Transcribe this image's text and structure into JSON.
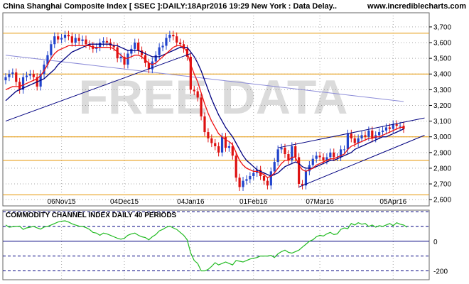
{
  "header": {
    "title": "China Shanghai Composite Index [ SSEC ]:DAILY:18Apr2016 19:29 New York : Data Delay..",
    "site": "www.incrediblecharts.com"
  },
  "watermark": "FREE DATA",
  "chart_data": [
    {
      "type": "candlestick",
      "title": "China Shanghai Composite Index [ SSEC ]:DAILY:18Apr2016 19:29 New York : Data Delay..",
      "ylim": [
        2560,
        3790
      ],
      "y_ticks": [
        "3,700",
        "3,600",
        "3,500",
        "3,400",
        "3,300",
        "3,200",
        "3,100",
        "3,000",
        "2,900",
        "2,800",
        "2,700",
        "2,600"
      ],
      "y_tick_values": [
        3700,
        3600,
        3500,
        3400,
        3300,
        3200,
        3100,
        3000,
        2900,
        2800,
        2700,
        2600
      ],
      "x_labels": [
        "06Nov15",
        "04Dec15",
        "04Jan16",
        "01Feb16",
        "07Mar16",
        "05Apr16"
      ],
      "x_label_index": [
        16,
        34,
        53,
        71,
        90,
        111
      ],
      "horizontal_levels": [
        3660,
        3400,
        3000,
        2850,
        2630
      ],
      "closes": [
        3380,
        3400,
        3410,
        3350,
        3300,
        3380,
        3390,
        3400,
        3380,
        3320,
        3400,
        3460,
        3520,
        3590,
        3640,
        3620,
        3630,
        3650,
        3640,
        3600,
        3630,
        3610,
        3620,
        3590,
        3580,
        3560,
        3570,
        3600,
        3610,
        3600,
        3580,
        3570,
        3500,
        3510,
        3460,
        3530,
        3560,
        3600,
        3550,
        3520,
        3470,
        3430,
        3480,
        3520,
        3570,
        3580,
        3630,
        3650,
        3640,
        3600,
        3590,
        3560,
        3510,
        3300,
        3290,
        3250,
        3130,
        3030,
        2990,
        2960,
        2940,
        2900,
        3000,
        2930,
        2940,
        2880,
        2740,
        2680,
        2720,
        2730,
        2750,
        2770,
        2790,
        2750,
        2720,
        2690,
        2780,
        2840,
        2920,
        2930,
        2890,
        2850,
        2940,
        2870,
        2700,
        2690,
        2780,
        2820,
        2860,
        2880,
        2870,
        2850,
        2870,
        2900,
        2870,
        2870,
        2920,
        2920,
        3020,
        2990,
        2960,
        2990,
        3010,
        3000,
        3040,
        2990,
        3010,
        3030,
        3040,
        3060,
        3050,
        3080,
        3070,
        3070,
        3050
      ],
      "ma_short": [
        3300,
        3310,
        3320,
        3320,
        3320,
        3330,
        3340,
        3350,
        3360,
        3370,
        3390,
        3420,
        3460,
        3500,
        3530,
        3550,
        3560,
        3570,
        3580,
        3580,
        3580,
        3580,
        3580,
        3580,
        3580,
        3570,
        3570,
        3570,
        3570,
        3570,
        3570,
        3560,
        3540,
        3520,
        3500,
        3500,
        3510,
        3520,
        3520,
        3510,
        3490,
        3470,
        3460,
        3470,
        3490,
        3510,
        3530,
        3550,
        3570,
        3580,
        3580,
        3570,
        3540,
        3460,
        3400,
        3350,
        3280,
        3210,
        3150,
        3100,
        3060,
        3020,
        3000,
        2980,
        2970,
        2950,
        2900,
        2850,
        2820,
        2800,
        2790,
        2780,
        2780,
        2770,
        2760,
        2740,
        2750,
        2770,
        2800,
        2830,
        2850,
        2850,
        2870,
        2870,
        2820,
        2790,
        2780,
        2790,
        2800,
        2820,
        2830,
        2840,
        2850,
        2860,
        2860,
        2870,
        2880,
        2890,
        2920,
        2940,
        2950,
        2960,
        2970,
        2980,
        2990,
        2990,
        3000,
        3000,
        3010,
        3020,
        3030,
        3040,
        3050,
        3060,
        3060
      ],
      "ma_medium": [
        3230,
        3250,
        3270,
        3290,
        3300,
        3310,
        3320,
        3330,
        3340,
        3350,
        3360,
        3370,
        3390,
        3410,
        3430,
        3460,
        3480,
        3500,
        3520,
        3540,
        3550,
        3560,
        3570,
        3580,
        3590,
        3590,
        3590,
        3590,
        3590,
        3590,
        3590,
        3580,
        3580,
        3570,
        3560,
        3550,
        3550,
        3550,
        3550,
        3540,
        3530,
        3520,
        3510,
        3510,
        3510,
        3520,
        3530,
        3540,
        3550,
        3560,
        3570,
        3570,
        3570,
        3540,
        3510,
        3470,
        3420,
        3360,
        3300,
        3240,
        3190,
        3140,
        3100,
        3060,
        3030,
        3000,
        2960,
        2920,
        2880,
        2850,
        2830,
        2810,
        2790,
        2780,
        2770,
        2760,
        2750,
        2760,
        2770,
        2790,
        2810,
        2820,
        2830,
        2840,
        2830,
        2810,
        2800,
        2800,
        2800,
        2810,
        2820,
        2830,
        2840,
        2850,
        2850,
        2860,
        2870,
        2880,
        2890,
        2900,
        2920,
        2930,
        2940,
        2950,
        2960,
        2970,
        2980,
        2990,
        3000,
        3000,
        3010,
        3020,
        3030,
        3040,
        3050
      ],
      "ma_long_start": 3520,
      "ma_long_end": 3225,
      "trendlines": [
        {
          "from": {
            "index": 0,
            "value": 3100
          },
          "to": {
            "index": 53,
            "value": 3530
          }
        },
        {
          "from": {
            "index": 84,
            "value": 2680
          },
          "to": {
            "index": 120,
            "value": 3010
          }
        },
        {
          "from": {
            "index": 78,
            "value": 2930
          },
          "to": {
            "index": 120,
            "value": 3120
          }
        }
      ]
    },
    {
      "type": "line",
      "title": "COMMODITY CHANNEL INDEX DAILY 40 PERIODS",
      "ylim": [
        -260,
        210
      ],
      "y_ticks": [
        "0",
        "-200"
      ],
      "y_tick_values": [
        0,
        -200
      ],
      "levels": [
        200,
        100,
        0,
        -100,
        -200
      ],
      "values": [
        110,
        95,
        98,
        100,
        102,
        80,
        90,
        95,
        100,
        90,
        82,
        96,
        100,
        110,
        120,
        130,
        135,
        138,
        130,
        118,
        110,
        102,
        100,
        92,
        80,
        60,
        55,
        40,
        55,
        50,
        40,
        30,
        20,
        14,
        20,
        40,
        50,
        55,
        40,
        30,
        25,
        10,
        30,
        45,
        70,
        80,
        95,
        102,
        90,
        80,
        60,
        40,
        10,
        -80,
        -130,
        -150,
        -200,
        -200,
        -190,
        -170,
        -145,
        -160,
        -150,
        -140,
        -150,
        -160,
        -130,
        -135,
        -140,
        -130,
        -120,
        -115,
        -110,
        -100,
        -100,
        -100,
        -95,
        -110,
        -85,
        -70,
        -60,
        -75,
        -80,
        -70,
        -60,
        -40,
        -20,
        0,
        10,
        30,
        40,
        35,
        50,
        60,
        45,
        50,
        80,
        90,
        85,
        120,
        110,
        125,
        115,
        120,
        100,
        110,
        95,
        105,
        100,
        110,
        120,
        105,
        125,
        115,
        110,
        95
      ]
    }
  ]
}
